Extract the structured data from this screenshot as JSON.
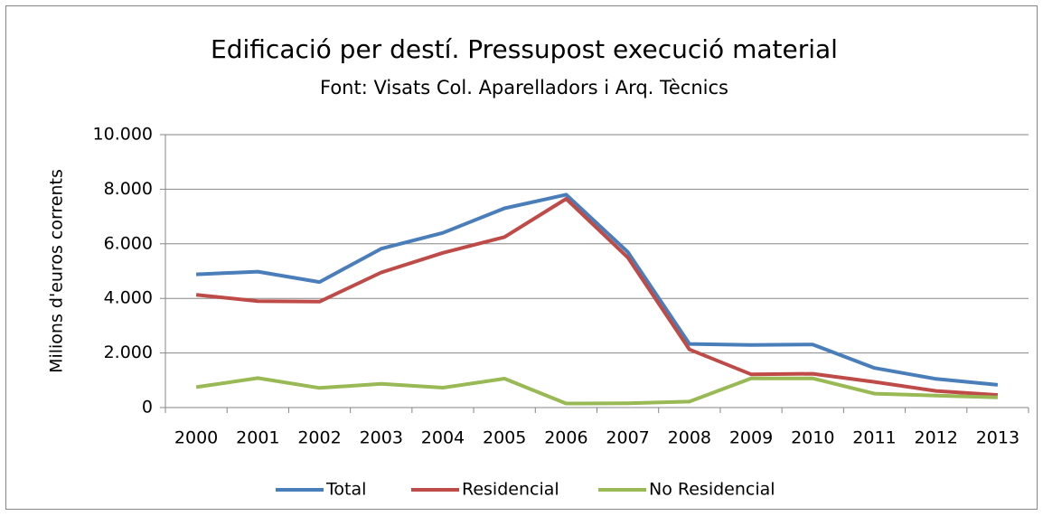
{
  "chart_data": {
    "type": "line",
    "title": "Edificació per destí. Pressupost execució material",
    "subtitle": "Font: Visats Col. Aparelladors i Arq. Tècnics",
    "y_label": "Milions d'euros corrents",
    "categories": [
      "2000",
      "2001",
      "2002",
      "2003",
      "2004",
      "2005",
      "2006",
      "2007",
      "2008",
      "2009",
      "2010",
      "2011",
      "2012",
      "2013"
    ],
    "series": [
      {
        "name": "Total",
        "color": "#4a7ebb",
        "values": [
          4880,
          4980,
          4600,
          5820,
          6400,
          7300,
          7800,
          5700,
          2330,
          2290,
          2310,
          1450,
          1050,
          830
        ]
      },
      {
        "name": "Residencial",
        "color": "#be4b48",
        "values": [
          4130,
          3900,
          3880,
          4950,
          5670,
          6250,
          7650,
          5500,
          2130,
          1220,
          1240,
          940,
          610,
          460
        ]
      },
      {
        "name": "No Residencial",
        "color": "#98b954",
        "values": [
          750,
          1080,
          720,
          870,
          730,
          1060,
          150,
          160,
          220,
          1070,
          1070,
          510,
          440,
          370
        ]
      }
    ],
    "ylim": [
      0,
      10000
    ],
    "yticks": [
      0,
      {
        "value": 2000,
        "label": "2.000"
      },
      {
        "value": 4000,
        "label": "4.000"
      },
      {
        "value": 6000,
        "label": "6.000"
      },
      {
        "value": 8000,
        "label": "8.000"
      },
      {
        "value": 10000,
        "label": "10.000"
      }
    ],
    "grid": true,
    "legend": "bottom"
  }
}
